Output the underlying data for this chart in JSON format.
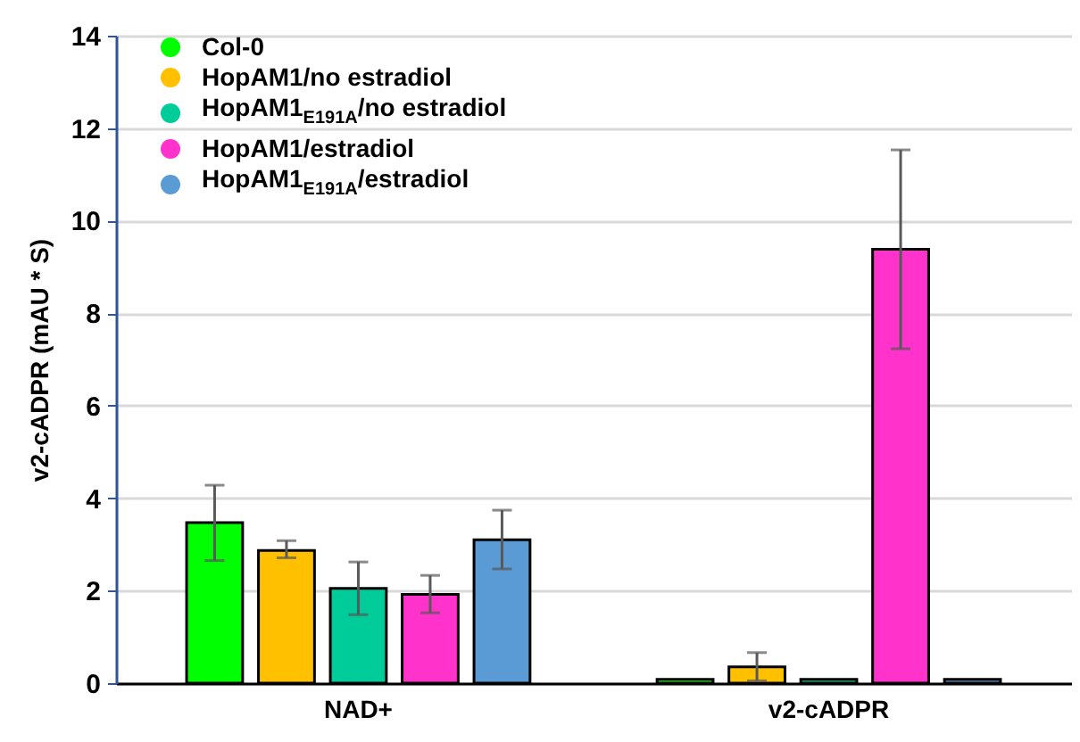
{
  "chart_data": {
    "type": "bar",
    "ylabel": "v2-cADPR (mAU * S)",
    "categories": [
      "NAD+",
      "v2-cADPR"
    ],
    "series": [
      {
        "name": "Col-0",
        "color": "#00ff00",
        "values": [
          3.47,
          0.08
        ],
        "errors": [
          [
            2.65,
            4.28
          ],
          null
        ]
      },
      {
        "name": "HopAM1/no estradiol",
        "color": "#ffc000",
        "values": [
          2.87,
          0.35
        ],
        "errors": [
          [
            2.71,
            3.08
          ],
          [
            0.05,
            0.66
          ]
        ]
      },
      {
        "name": "HopAM1$_{E191A}$/no estradiol",
        "color": "#00cc99",
        "values": [
          2.05,
          0.08
        ],
        "errors": [
          [
            1.48,
            2.62
          ],
          null
        ]
      },
      {
        "name": "HopAM1/estradiol",
        "color": "#ff33cc",
        "values": [
          1.92,
          9.38
        ],
        "errors": [
          [
            1.52,
            2.33
          ],
          [
            7.23,
            11.53
          ]
        ]
      },
      {
        "name": "HopAM1$_{E191A}$/estradiol",
        "color": "#5b9bd5",
        "values": [
          3.1,
          0.08
        ],
        "errors": [
          [
            2.47,
            3.74
          ],
          null
        ]
      }
    ],
    "ylim": [
      0,
      14
    ],
    "yticks": [
      0,
      2,
      4,
      6,
      8,
      10,
      12,
      14
    ],
    "grid": "y",
    "legend": "top left"
  }
}
